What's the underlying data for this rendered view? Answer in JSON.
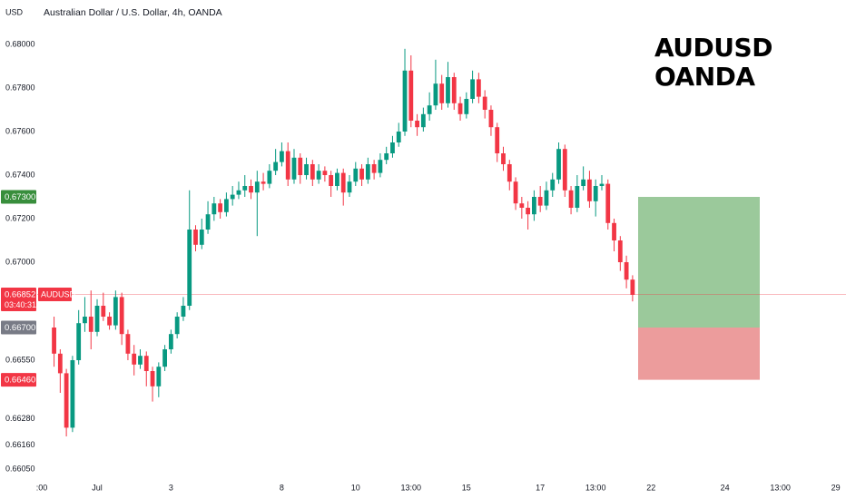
{
  "chart_data": {
    "type": "candlestick",
    "title": "Australian Dollar / U.S. Dollar, 4h, OANDA",
    "currency": "USD",
    "watermark": [
      "AUDUSD",
      "OANDA"
    ],
    "up_color": "#089981",
    "down_color": "#f23645",
    "categories": [
      ":00",
      null,
      null,
      null,
      null,
      null,
      null,
      null,
      null,
      "Jul",
      null,
      null,
      null,
      null,
      null,
      null,
      null,
      null,
      null,
      null,
      null,
      "3",
      null,
      null,
      null,
      null,
      null,
      null,
      null,
      null,
      null,
      null,
      null,
      null,
      null,
      null,
      null,
      null,
      null,
      "8",
      null,
      null,
      null,
      null,
      null,
      null,
      null,
      null,
      null,
      null,
      null,
      "10",
      null,
      null,
      null,
      null,
      null,
      null,
      null,
      null,
      "13:00",
      null,
      null,
      null,
      null,
      null,
      null,
      null,
      null,
      "15",
      null,
      null,
      null,
      null,
      null,
      null,
      null,
      null,
      null,
      null,
      null,
      "17",
      null,
      null,
      null,
      null,
      null,
      null,
      null,
      null,
      "13:00",
      null,
      null,
      null,
      null,
      null,
      null,
      null,
      null,
      "22",
      null,
      null,
      null,
      null,
      null,
      null,
      null,
      null,
      null,
      null,
      null,
      "24",
      null,
      null,
      null,
      null,
      null,
      null,
      null,
      null,
      "13:00",
      null,
      null,
      null,
      null,
      null,
      null,
      null,
      null,
      "29",
      null
    ],
    "open": [
      null,
      null,
      0.667,
      0.6658,
      0.6649,
      0.6624,
      0.6655,
      0.6672,
      0.6675,
      0.6668,
      0.668,
      0.6675,
      0.6671,
      0.6684,
      0.6667,
      0.6658,
      0.6653,
      0.6657,
      0.665,
      0.6643,
      0.6652,
      0.666,
      0.6667,
      0.6675,
      0.668,
      0.6715,
      0.6708,
      0.6715,
      0.6722,
      0.6727,
      0.6723,
      0.6729,
      0.6731,
      0.6733,
      0.6735,
      0.6732,
      0.6737,
      0.6736,
      0.6742,
      0.6746,
      0.6751,
      0.6738,
      0.6748,
      0.674,
      0.6745,
      0.6738,
      0.6742,
      0.674,
      0.6735,
      0.6741,
      0.6732,
      0.6737,
      0.6743,
      0.6738,
      0.6745,
      0.6741,
      0.6747,
      0.675,
      0.6755,
      0.676,
      0.6788,
      0.6765,
      0.6762,
      0.6768,
      0.6772,
      0.6782,
      0.6773,
      0.6785,
      0.6773,
      0.6768,
      0.6775,
      0.6784,
      0.6776,
      0.677,
      0.6762,
      0.675,
      0.6745,
      0.6737,
      0.6727,
      0.6725,
      0.6722,
      0.673,
      0.6726,
      0.6733,
      0.6738,
      0.6752,
      0.6733,
      0.6725,
      0.6735,
      0.6738,
      0.6728,
      0.6735,
      0.6736,
      0.6718,
      0.671,
      0.67,
      0.6692,
      null,
      null,
      null,
      null,
      null,
      null,
      null,
      null,
      null,
      null,
      null,
      null,
      null,
      null,
      null,
      null,
      null,
      null,
      null,
      null,
      null,
      null,
      null,
      null,
      null,
      null,
      null,
      null,
      null,
      null,
      null,
      null,
      null,
      null
    ],
    "high": [
      null,
      null,
      0.6675,
      0.666,
      0.6651,
      0.6657,
      0.6678,
      0.6684,
      0.6687,
      0.6683,
      0.6686,
      0.6677,
      0.6687,
      0.6686,
      0.6669,
      0.6662,
      0.666,
      0.6659,
      0.6652,
      0.6654,
      0.6662,
      0.6669,
      0.6677,
      0.6684,
      0.6733,
      0.6717,
      0.672,
      0.6728,
      0.673,
      0.6729,
      0.6732,
      0.6735,
      0.6737,
      0.674,
      0.6738,
      0.6742,
      0.6741,
      0.6745,
      0.6752,
      0.6755,
      0.6755,
      0.6752,
      0.675,
      0.6748,
      0.6747,
      0.6745,
      0.6744,
      0.6742,
      0.6743,
      0.6743,
      0.674,
      0.6746,
      0.6745,
      0.6748,
      0.6747,
      0.675,
      0.6753,
      0.6758,
      0.6764,
      0.6798,
      0.6795,
      0.6768,
      0.6771,
      0.6778,
      0.6793,
      0.6786,
      0.6792,
      0.6787,
      0.6776,
      0.6778,
      0.6788,
      0.6787,
      0.6779,
      0.6772,
      0.6764,
      0.6753,
      0.6747,
      0.6739,
      0.673,
      0.6728,
      0.6733,
      0.6735,
      0.6737,
      0.6741,
      0.6755,
      0.6754,
      0.6735,
      0.674,
      0.6744,
      0.6742,
      0.6738,
      0.674,
      0.6738,
      0.672,
      0.6712,
      0.6703,
      0.6694,
      null,
      null,
      null,
      null,
      null,
      null,
      null,
      null,
      null,
      null,
      null,
      null,
      null,
      null,
      null,
      null,
      null,
      null,
      null,
      null,
      null,
      null,
      null,
      null,
      null,
      null,
      null,
      null,
      null,
      null,
      null,
      null,
      null,
      null
    ],
    "low": [
      null,
      null,
      0.6652,
      0.664,
      0.662,
      0.6622,
      0.6653,
      0.6668,
      0.666,
      0.6666,
      0.6673,
      0.6669,
      0.6669,
      0.6662,
      0.6655,
      0.6648,
      0.6651,
      0.6643,
      0.6636,
      0.6638,
      0.665,
      0.6658,
      0.6665,
      0.6673,
      0.6678,
      0.6705,
      0.6706,
      0.6713,
      0.6719,
      0.672,
      0.6721,
      0.6726,
      0.6729,
      0.673,
      0.6729,
      0.6712,
      0.6733,
      0.6734,
      0.674,
      0.6744,
      0.6735,
      0.6736,
      0.6736,
      0.6738,
      0.6735,
      0.6736,
      0.6737,
      0.673,
      0.6733,
      0.6726,
      0.673,
      0.6735,
      0.6735,
      0.6736,
      0.6738,
      0.6739,
      0.6745,
      0.6748,
      0.6753,
      0.6758,
      0.6762,
      0.6758,
      0.676,
      0.6765,
      0.677,
      0.677,
      0.6771,
      0.677,
      0.6765,
      0.6766,
      0.6773,
      0.6773,
      0.6766,
      0.6758,
      0.6746,
      0.6742,
      0.6733,
      0.6724,
      0.672,
      0.6715,
      0.6719,
      0.6723,
      0.6724,
      0.673,
      0.6736,
      0.673,
      0.6722,
      0.6723,
      0.6733,
      0.6725,
      0.6721,
      0.6733,
      0.6715,
      0.6705,
      0.6696,
      0.6688,
      0.6682,
      null,
      null,
      null,
      null,
      null,
      null,
      null,
      null,
      null,
      null,
      null,
      null,
      null,
      null,
      null,
      null,
      null,
      null,
      null,
      null,
      null,
      null,
      null,
      null,
      null,
      null,
      null,
      null,
      null,
      null,
      null,
      null,
      null,
      null
    ],
    "close": [
      null,
      null,
      0.6658,
      0.6649,
      0.6624,
      0.6655,
      0.6672,
      0.6675,
      0.6668,
      0.668,
      0.6675,
      0.6671,
      0.6684,
      0.6667,
      0.6658,
      0.6653,
      0.6657,
      0.665,
      0.6643,
      0.6652,
      0.666,
      0.6667,
      0.6675,
      0.668,
      0.6715,
      0.6708,
      0.6715,
      0.6722,
      0.6727,
      0.6723,
      0.6729,
      0.6731,
      0.6733,
      0.6735,
      0.6732,
      0.6737,
      0.6736,
      0.6742,
      0.6746,
      0.6751,
      0.6738,
      0.6748,
      0.674,
      0.6745,
      0.6738,
      0.6742,
      0.674,
      0.6735,
      0.6741,
      0.6732,
      0.6737,
      0.6743,
      0.6738,
      0.6745,
      0.6741,
      0.6747,
      0.675,
      0.6755,
      0.676,
      0.6788,
      0.6765,
      0.6762,
      0.6768,
      0.6772,
      0.6782,
      0.6773,
      0.6785,
      0.6773,
      0.6768,
      0.6775,
      0.6784,
      0.6776,
      0.677,
      0.6762,
      0.675,
      0.6745,
      0.6737,
      0.6727,
      0.6725,
      0.6722,
      0.673,
      0.6726,
      0.6733,
      0.6738,
      0.6752,
      0.6733,
      0.6725,
      0.6735,
      0.6738,
      0.6728,
      0.6735,
      0.6736,
      0.6718,
      0.671,
      0.67,
      0.6692,
      0.6685,
      null,
      null,
      null,
      null,
      null,
      null,
      null,
      null,
      null,
      null,
      null,
      null,
      null,
      null,
      null,
      null,
      null,
      null,
      null,
      null,
      null,
      null,
      null,
      null,
      null,
      null,
      null,
      null,
      null,
      null,
      null,
      null,
      null,
      null
    ],
    "ylim": [
      0.66,
      0.682
    ],
    "yticks": [
      {
        "value": 0.68,
        "label": "0.68000"
      },
      {
        "value": 0.678,
        "label": "0.67800"
      },
      {
        "value": 0.676,
        "label": "0.67600"
      },
      {
        "value": 0.674,
        "label": "0.67400"
      },
      {
        "value": 0.672,
        "label": "0.67200"
      },
      {
        "value": 0.67,
        "label": "0.67000"
      },
      {
        "value": 0.6655,
        "label": "0.66550"
      },
      {
        "value": 0.6628,
        "label": "0.66280"
      },
      {
        "value": 0.6616,
        "label": "0.66160"
      },
      {
        "value": 0.6605,
        "label": "0.66050"
      }
    ],
    "grid": false,
    "price_labels": [
      {
        "value": 0.673,
        "label": "0.67300",
        "color": "#388e3c"
      },
      {
        "value": 0.667,
        "label": "0.66700",
        "color": "#787b86"
      },
      {
        "value": 0.6646,
        "label": "0.66460",
        "color": "#f23645"
      }
    ],
    "last_price": {
      "value": 0.66852,
      "label": "0.66852",
      "countdown": "03:40:31",
      "symbol": "AUDUSD",
      "color": "#f23645"
    },
    "position": {
      "profit_color": "#9bc99b",
      "loss_color": "#ec9c9c"
    }
  }
}
